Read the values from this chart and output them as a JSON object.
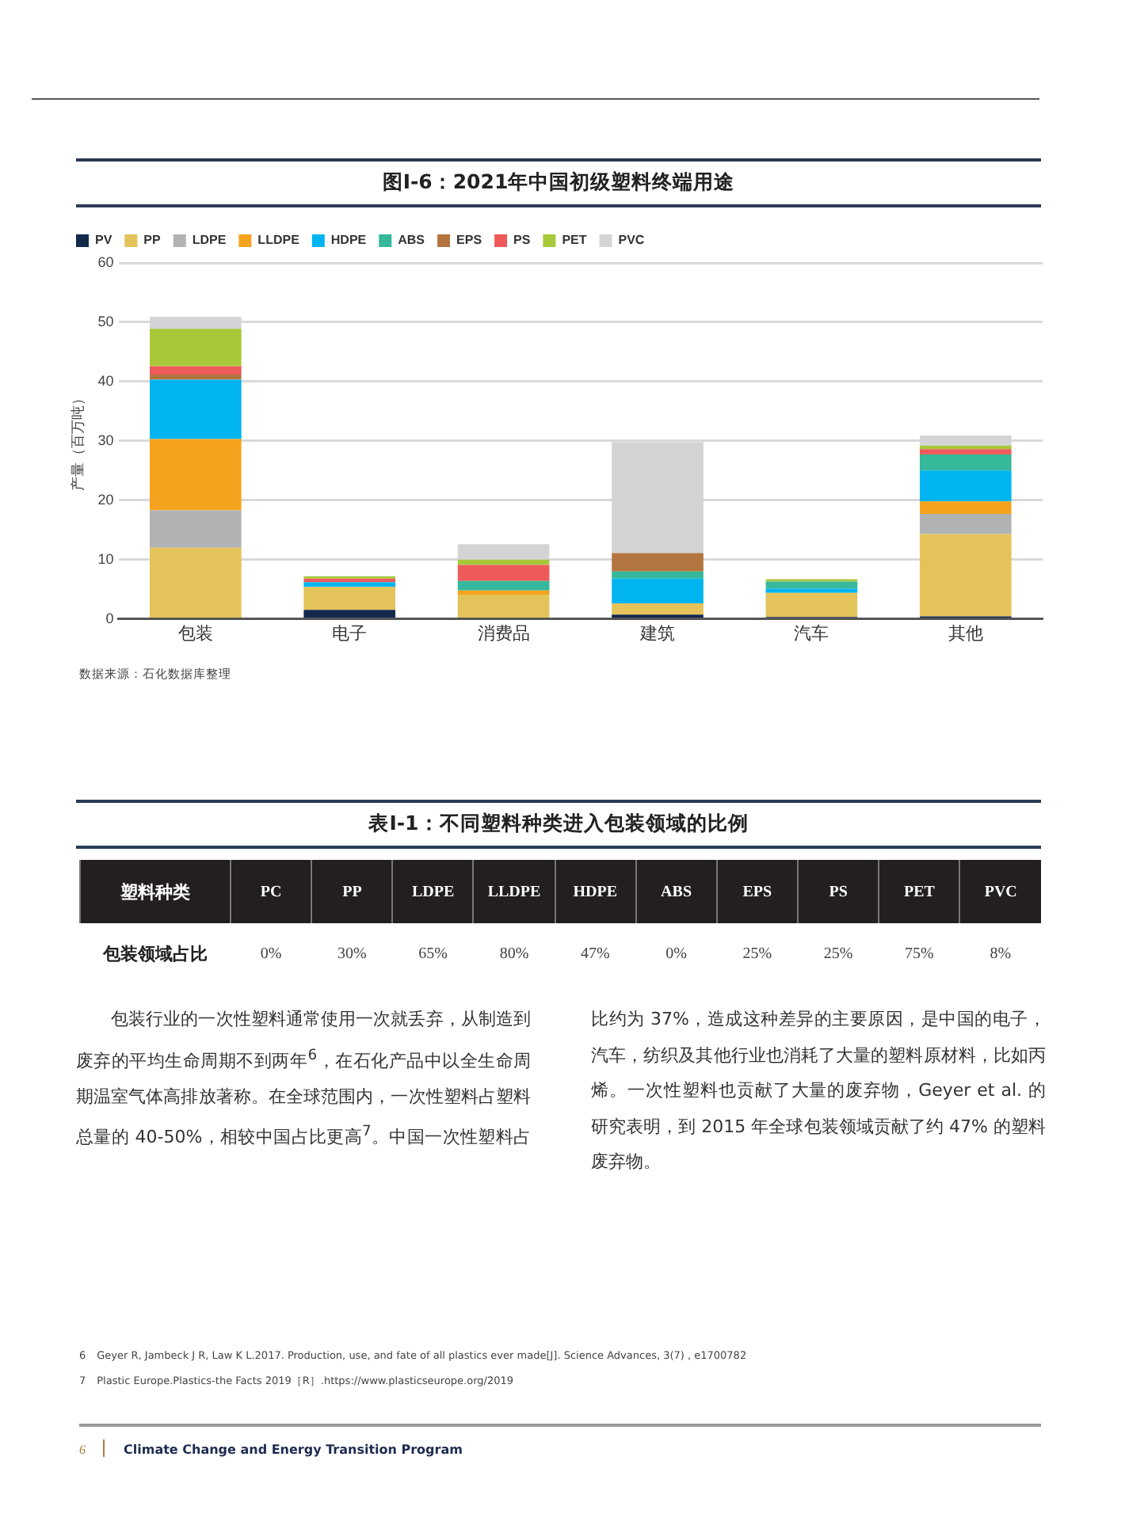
{
  "chart_data": [
    {
      "type": "bar",
      "title": "图I-6：2021年中国初级塑料终端用途",
      "ylabel": "产量（百万吨）",
      "categories": [
        "包装",
        "电子",
        "消费品",
        "建筑",
        "汽车",
        "其他"
      ],
      "stacked": true,
      "series": [
        {
          "name": "PV",
          "color": "#13294b",
          "values": [
            0,
            1.5,
            0,
            0.7,
            0.3,
            0.4
          ]
        },
        {
          "name": "PP",
          "color": "#e3c35a",
          "values": [
            12,
            3.9,
            4.1,
            1.9,
            4.1,
            13.9
          ]
        },
        {
          "name": "LDPE",
          "color": "#b1b2b4",
          "values": [
            6.3,
            0,
            0,
            0,
            0,
            3.4
          ]
        },
        {
          "name": "LLDPE",
          "color": "#f5a31f",
          "values": [
            12,
            0,
            0.7,
            0,
            0,
            2.1
          ]
        },
        {
          "name": "HDPE",
          "color": "#00b5ef",
          "values": [
            10,
            0.8,
            0,
            4.2,
            0.7,
            5.2
          ]
        },
        {
          "name": "ABS",
          "color": "#36b89a",
          "values": [
            0,
            0,
            1.6,
            1.2,
            1.2,
            2.7
          ]
        },
        {
          "name": "EPS",
          "color": "#b3753f",
          "values": [
            0.9,
            0,
            0,
            3.1,
            0,
            0
          ]
        },
        {
          "name": "PS",
          "color": "#ee5a5a",
          "values": [
            1.4,
            0.6,
            2.7,
            0,
            0,
            0.9
          ]
        },
        {
          "name": "PET",
          "color": "#a8c83a",
          "values": [
            6.3,
            0.4,
            0.9,
            0,
            0.4,
            0.6
          ]
        },
        {
          "name": "PVC",
          "color": "#d3d4d6",
          "values": [
            2,
            0,
            2.6,
            18.7,
            0,
            1.7
          ]
        }
      ],
      "ylim": [
        0,
        60
      ],
      "yticks": [
        0,
        10,
        20,
        30,
        40,
        50,
        60
      ],
      "grid": "y",
      "legend": "top left",
      "annotations": [
        "数据来源：石化数据库整理"
      ]
    },
    {
      "type": "other",
      "title": "表I-1：不同塑料种类进入包装领域的比例",
      "xlabel": "塑料种类",
      "ylabel": "包装领域占比",
      "categories": [
        "PC",
        "PP",
        "LDPE",
        "LLDPE",
        "HDPE",
        "ABS",
        "EPS",
        "PS",
        "PET",
        "PVC"
      ],
      "value_labels": [
        "0%",
        "30%",
        "65%",
        "80%",
        "47%",
        "0%",
        "25%",
        "25%",
        "75%",
        "8%"
      ],
      "annotations": [
        "包装行业的一次性塑料通常使用一次就丢弃，从制造到废弃的平均生命周期不到两年$^{6}$，在石化产品中以全生命周期温室气体高排放著称。在全球范围内，一次性塑料占塑料总量的 40-50%，相较中国占比更高$^{7}$。中国一次性塑料占比约为 37%，造成这种差异的主要原因，是中国的电子，汽车，纺织及其他行业也消耗了大量的塑料原材料，比如丙烯。一次性塑料也贡献了大量的废弃物，Geyer et al. 的研究表明，到 2015 年全球包装领域贡献了约 47% 的塑料废弃物。",
        "6　Geyer R, Jambeck J R, Law K L.2017. Production, use, and fate of all plastics ever made[J]. Science Advances, 3(7) , e1700782",
        "7　Plastic Europe.Plastics-the Facts 2019［R］.https://www.plasticseurope.org/2019",
        "6",
        "Climate Change and Energy Transition Program"
      ]
    }
  ]
}
